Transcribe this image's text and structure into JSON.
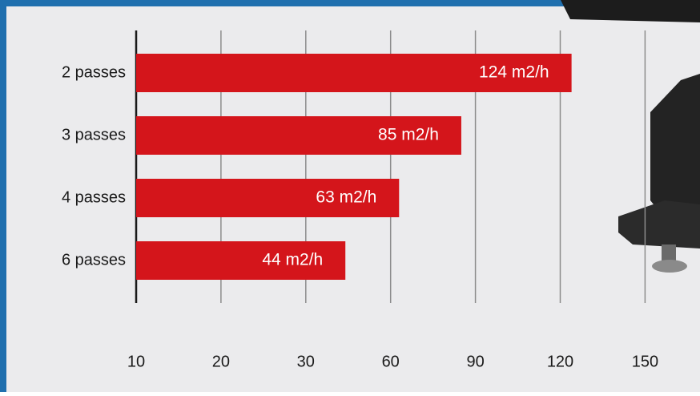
{
  "chart_data": {
    "type": "bar",
    "orientation": "horizontal",
    "categories": [
      "2 passes",
      "3 passes",
      "4 passes",
      "6 passes"
    ],
    "values": [
      124,
      85,
      63,
      44
    ],
    "value_labels": [
      "124 m2/h",
      "85 m2/h",
      "63 m2/h",
      "44 m2/h"
    ],
    "color": "#d4151b",
    "xlim": [
      10,
      150
    ],
    "xticks": [
      10,
      20,
      30,
      60,
      90,
      120,
      150
    ],
    "grid": true
  }
}
